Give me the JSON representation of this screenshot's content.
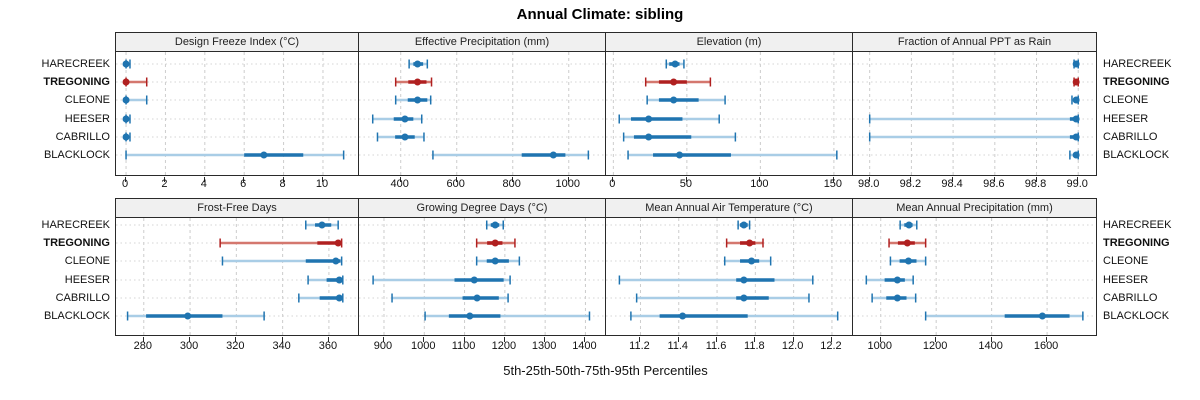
{
  "title": "Annual Climate: sibling",
  "xlabel": "5th-25th-50th-75th-95th Percentiles",
  "sites": [
    "HARECREEK",
    "TREGONING",
    "CLEONE",
    "HEESER",
    "CABRILLO",
    "BLACKLOCK"
  ],
  "highlight_site": "TREGONING",
  "colors": {
    "blue": "#1f74b0",
    "blue_light": "#a9cde6",
    "red": "#b02020",
    "red_light": "#d4776e",
    "header_bg": "#f0f0f0",
    "panel_border": "#2a2a2a",
    "grid_vertical": "#cccccc",
    "grid_horizontal": "#d4d4d4"
  },
  "chart_data": [
    {
      "type": "dot-interval",
      "row": 0,
      "col": 0,
      "title": "Design Freeze Index (°C)",
      "xlim": [
        -0.51,
        11.83
      ],
      "ticks": [
        0,
        2,
        4,
        6,
        8,
        10
      ],
      "tick_labels": [
        "0",
        "2",
        "4",
        "6",
        "8",
        "10"
      ],
      "percentile_labels": [
        "5th",
        "25th",
        "50th",
        "75th",
        "95th"
      ],
      "series": [
        {
          "site": "HARECREEK",
          "values": [
            0,
            0,
            0,
            0,
            0.2
          ]
        },
        {
          "site": "TREGONING",
          "values": [
            0,
            0,
            0,
            0.1,
            1.05
          ]
        },
        {
          "site": "CLEONE",
          "values": [
            0,
            0,
            0,
            0.1,
            1.05
          ]
        },
        {
          "site": "HEESER",
          "values": [
            0,
            0,
            0,
            0,
            0.2
          ]
        },
        {
          "site": "CABRILLO",
          "values": [
            0,
            0,
            0,
            0,
            0.2
          ]
        },
        {
          "site": "BLACKLOCK",
          "values": [
            0,
            6,
            7,
            9,
            11.05
          ]
        }
      ]
    },
    {
      "type": "dot-interval",
      "row": 0,
      "col": 1,
      "title": "Effective Precipitation (mm)",
      "xlim": [
        251,
        1133
      ],
      "ticks": [
        400,
        600,
        800,
        1000
      ],
      "tick_labels": [
        "400",
        "600",
        "800",
        "1000"
      ],
      "series": [
        {
          "site": "HARECREEK",
          "values": [
            430,
            445,
            460,
            480,
            495
          ]
        },
        {
          "site": "TREGONING",
          "values": [
            382,
            427,
            460,
            492,
            510
          ]
        },
        {
          "site": "CLEONE",
          "values": [
            382,
            425,
            460,
            495,
            507
          ]
        },
        {
          "site": "HEESER",
          "values": [
            300,
            375,
            415,
            445,
            475
          ]
        },
        {
          "site": "CABRILLO",
          "values": [
            317,
            380,
            415,
            450,
            483
          ]
        },
        {
          "site": "BLACKLOCK",
          "values": [
            515,
            832,
            945,
            988,
            1070
          ]
        }
      ]
    },
    {
      "type": "dot-interval",
      "row": 0,
      "col": 2,
      "title": "Elevation (m)",
      "xlim": [
        -5,
        163
      ],
      "ticks": [
        0,
        50,
        100,
        150
      ],
      "tick_labels": [
        "0",
        "50",
        "100",
        "150"
      ],
      "series": [
        {
          "site": "HARECREEK",
          "values": [
            36,
            38,
            42,
            45,
            48
          ]
        },
        {
          "site": "TREGONING",
          "values": [
            22,
            31,
            41,
            50,
            66
          ]
        },
        {
          "site": "CLEONE",
          "values": [
            23,
            31,
            41,
            58,
            76
          ]
        },
        {
          "site": "HEESER",
          "values": [
            4,
            12,
            24,
            47,
            72
          ]
        },
        {
          "site": "CABRILLO",
          "values": [
            7,
            14,
            24,
            53,
            83
          ]
        },
        {
          "site": "BLACKLOCK",
          "values": [
            10,
            27,
            45,
            80,
            152
          ]
        }
      ]
    },
    {
      "type": "dot-interval",
      "row": 0,
      "col": 3,
      "title": "Fraction of Annual PPT as Rain",
      "xlim": [
        97.92,
        99.09
      ],
      "ticks": [
        98.0,
        98.2,
        98.4,
        98.6,
        98.8,
        99.0
      ],
      "tick_labels": [
        "98.0",
        "98.2",
        "98.4",
        "98.6",
        "98.8",
        "99.0"
      ],
      "series": [
        {
          "site": "HARECREEK",
          "values": [
            98.98,
            98.99,
            98.99,
            98.99,
            99.0
          ]
        },
        {
          "site": "TREGONING",
          "values": [
            98.98,
            98.99,
            98.99,
            98.99,
            99.0
          ]
        },
        {
          "site": "CLEONE",
          "values": [
            98.97,
            98.98,
            98.99,
            98.99,
            99.0
          ]
        },
        {
          "site": "HEESER",
          "values": [
            98.0,
            98.96,
            98.99,
            98.99,
            99.0
          ]
        },
        {
          "site": "CABRILLO",
          "values": [
            98.0,
            98.96,
            98.99,
            98.99,
            99.0
          ]
        },
        {
          "site": "BLACKLOCK",
          "values": [
            98.96,
            98.98,
            98.99,
            98.99,
            99.0
          ]
        }
      ]
    },
    {
      "type": "dot-interval",
      "row": 1,
      "col": 0,
      "title": "Frost-Free Days",
      "xlim": [
        268,
        373
      ],
      "ticks": [
        280,
        300,
        320,
        340,
        360
      ],
      "tick_labels": [
        "280",
        "300",
        "320",
        "340",
        "360"
      ],
      "series": [
        {
          "site": "HARECREEK",
          "values": [
            350,
            354,
            357,
            361,
            364
          ]
        },
        {
          "site": "TREGONING",
          "values": [
            313,
            355,
            364,
            365,
            365.5
          ]
        },
        {
          "site": "CLEONE",
          "values": [
            314,
            350,
            363,
            365,
            365.5
          ]
        },
        {
          "site": "HEESER",
          "values": [
            351,
            359,
            364.5,
            365.5,
            366
          ]
        },
        {
          "site": "CABRILLO",
          "values": [
            347,
            356,
            364.5,
            365.5,
            366
          ]
        },
        {
          "site": "BLACKLOCK",
          "values": [
            273,
            281,
            299,
            314,
            332
          ]
        }
      ]
    },
    {
      "type": "dot-interval",
      "row": 1,
      "col": 1,
      "title": "Growing Degree Days (°C)",
      "xlim": [
        838,
        1451
      ],
      "ticks": [
        900,
        1000,
        1100,
        1200,
        1300,
        1400
      ],
      "tick_labels": [
        "900",
        "1000",
        "1100",
        "1200",
        "1300",
        "1400"
      ],
      "series": [
        {
          "site": "HARECREEK",
          "values": [
            1155,
            1165,
            1176,
            1186,
            1196
          ]
        },
        {
          "site": "TREGONING",
          "values": [
            1130,
            1156,
            1176,
            1194,
            1225
          ]
        },
        {
          "site": "CLEONE",
          "values": [
            1130,
            1155,
            1176,
            1210,
            1236
          ]
        },
        {
          "site": "HEESER",
          "values": [
            873,
            1075,
            1124,
            1197,
            1213
          ]
        },
        {
          "site": "CABRILLO",
          "values": [
            920,
            1095,
            1131,
            1185,
            1208
          ]
        },
        {
          "site": "BLACKLOCK",
          "values": [
            1002,
            1061,
            1113,
            1189,
            1410
          ]
        }
      ]
    },
    {
      "type": "dot-interval",
      "row": 1,
      "col": 2,
      "title": "Mean Annual Air Temperature (°C)",
      "xlim": [
        11.02,
        12.31
      ],
      "ticks": [
        11.2,
        11.4,
        11.6,
        11.8,
        12.0,
        12.2
      ],
      "tick_labels": [
        "11.2",
        "11.4",
        "11.6",
        "11.8",
        "12.0",
        "12.2"
      ],
      "series": [
        {
          "site": "HARECREEK",
          "values": [
            11.71,
            11.72,
            11.74,
            11.76,
            11.77
          ]
        },
        {
          "site": "TREGONING",
          "values": [
            11.65,
            11.72,
            11.77,
            11.8,
            11.84
          ]
        },
        {
          "site": "CLEONE",
          "values": [
            11.64,
            11.72,
            11.78,
            11.82,
            11.88
          ]
        },
        {
          "site": "HEESER",
          "values": [
            11.09,
            11.7,
            11.74,
            11.9,
            12.1
          ]
        },
        {
          "site": "CABRILLO",
          "values": [
            11.18,
            11.7,
            11.74,
            11.87,
            12.08
          ]
        },
        {
          "site": "BLACKLOCK",
          "values": [
            11.15,
            11.3,
            11.42,
            11.76,
            12.23
          ]
        }
      ]
    },
    {
      "type": "dot-interval",
      "row": 1,
      "col": 3,
      "title": "Mean Annual Precipitation (mm)",
      "xlim": [
        900,
        1780
      ],
      "ticks": [
        1000,
        1200,
        1400,
        1600
      ],
      "tick_labels": [
        "1000",
        "1200",
        "1400",
        "1600"
      ],
      "series": [
        {
          "site": "HARECREEK",
          "values": [
            1070,
            1085,
            1102,
            1115,
            1130
          ]
        },
        {
          "site": "TREGONING",
          "values": [
            1030,
            1062,
            1096,
            1123,
            1162
          ]
        },
        {
          "site": "CLEONE",
          "values": [
            1035,
            1068,
            1100,
            1129,
            1162
          ]
        },
        {
          "site": "HEESER",
          "values": [
            948,
            1014,
            1060,
            1087,
            1117
          ]
        },
        {
          "site": "CABRILLO",
          "values": [
            969,
            1020,
            1060,
            1093,
            1126
          ]
        },
        {
          "site": "BLACKLOCK",
          "values": [
            1162,
            1447,
            1583,
            1681,
            1729
          ]
        }
      ]
    }
  ]
}
